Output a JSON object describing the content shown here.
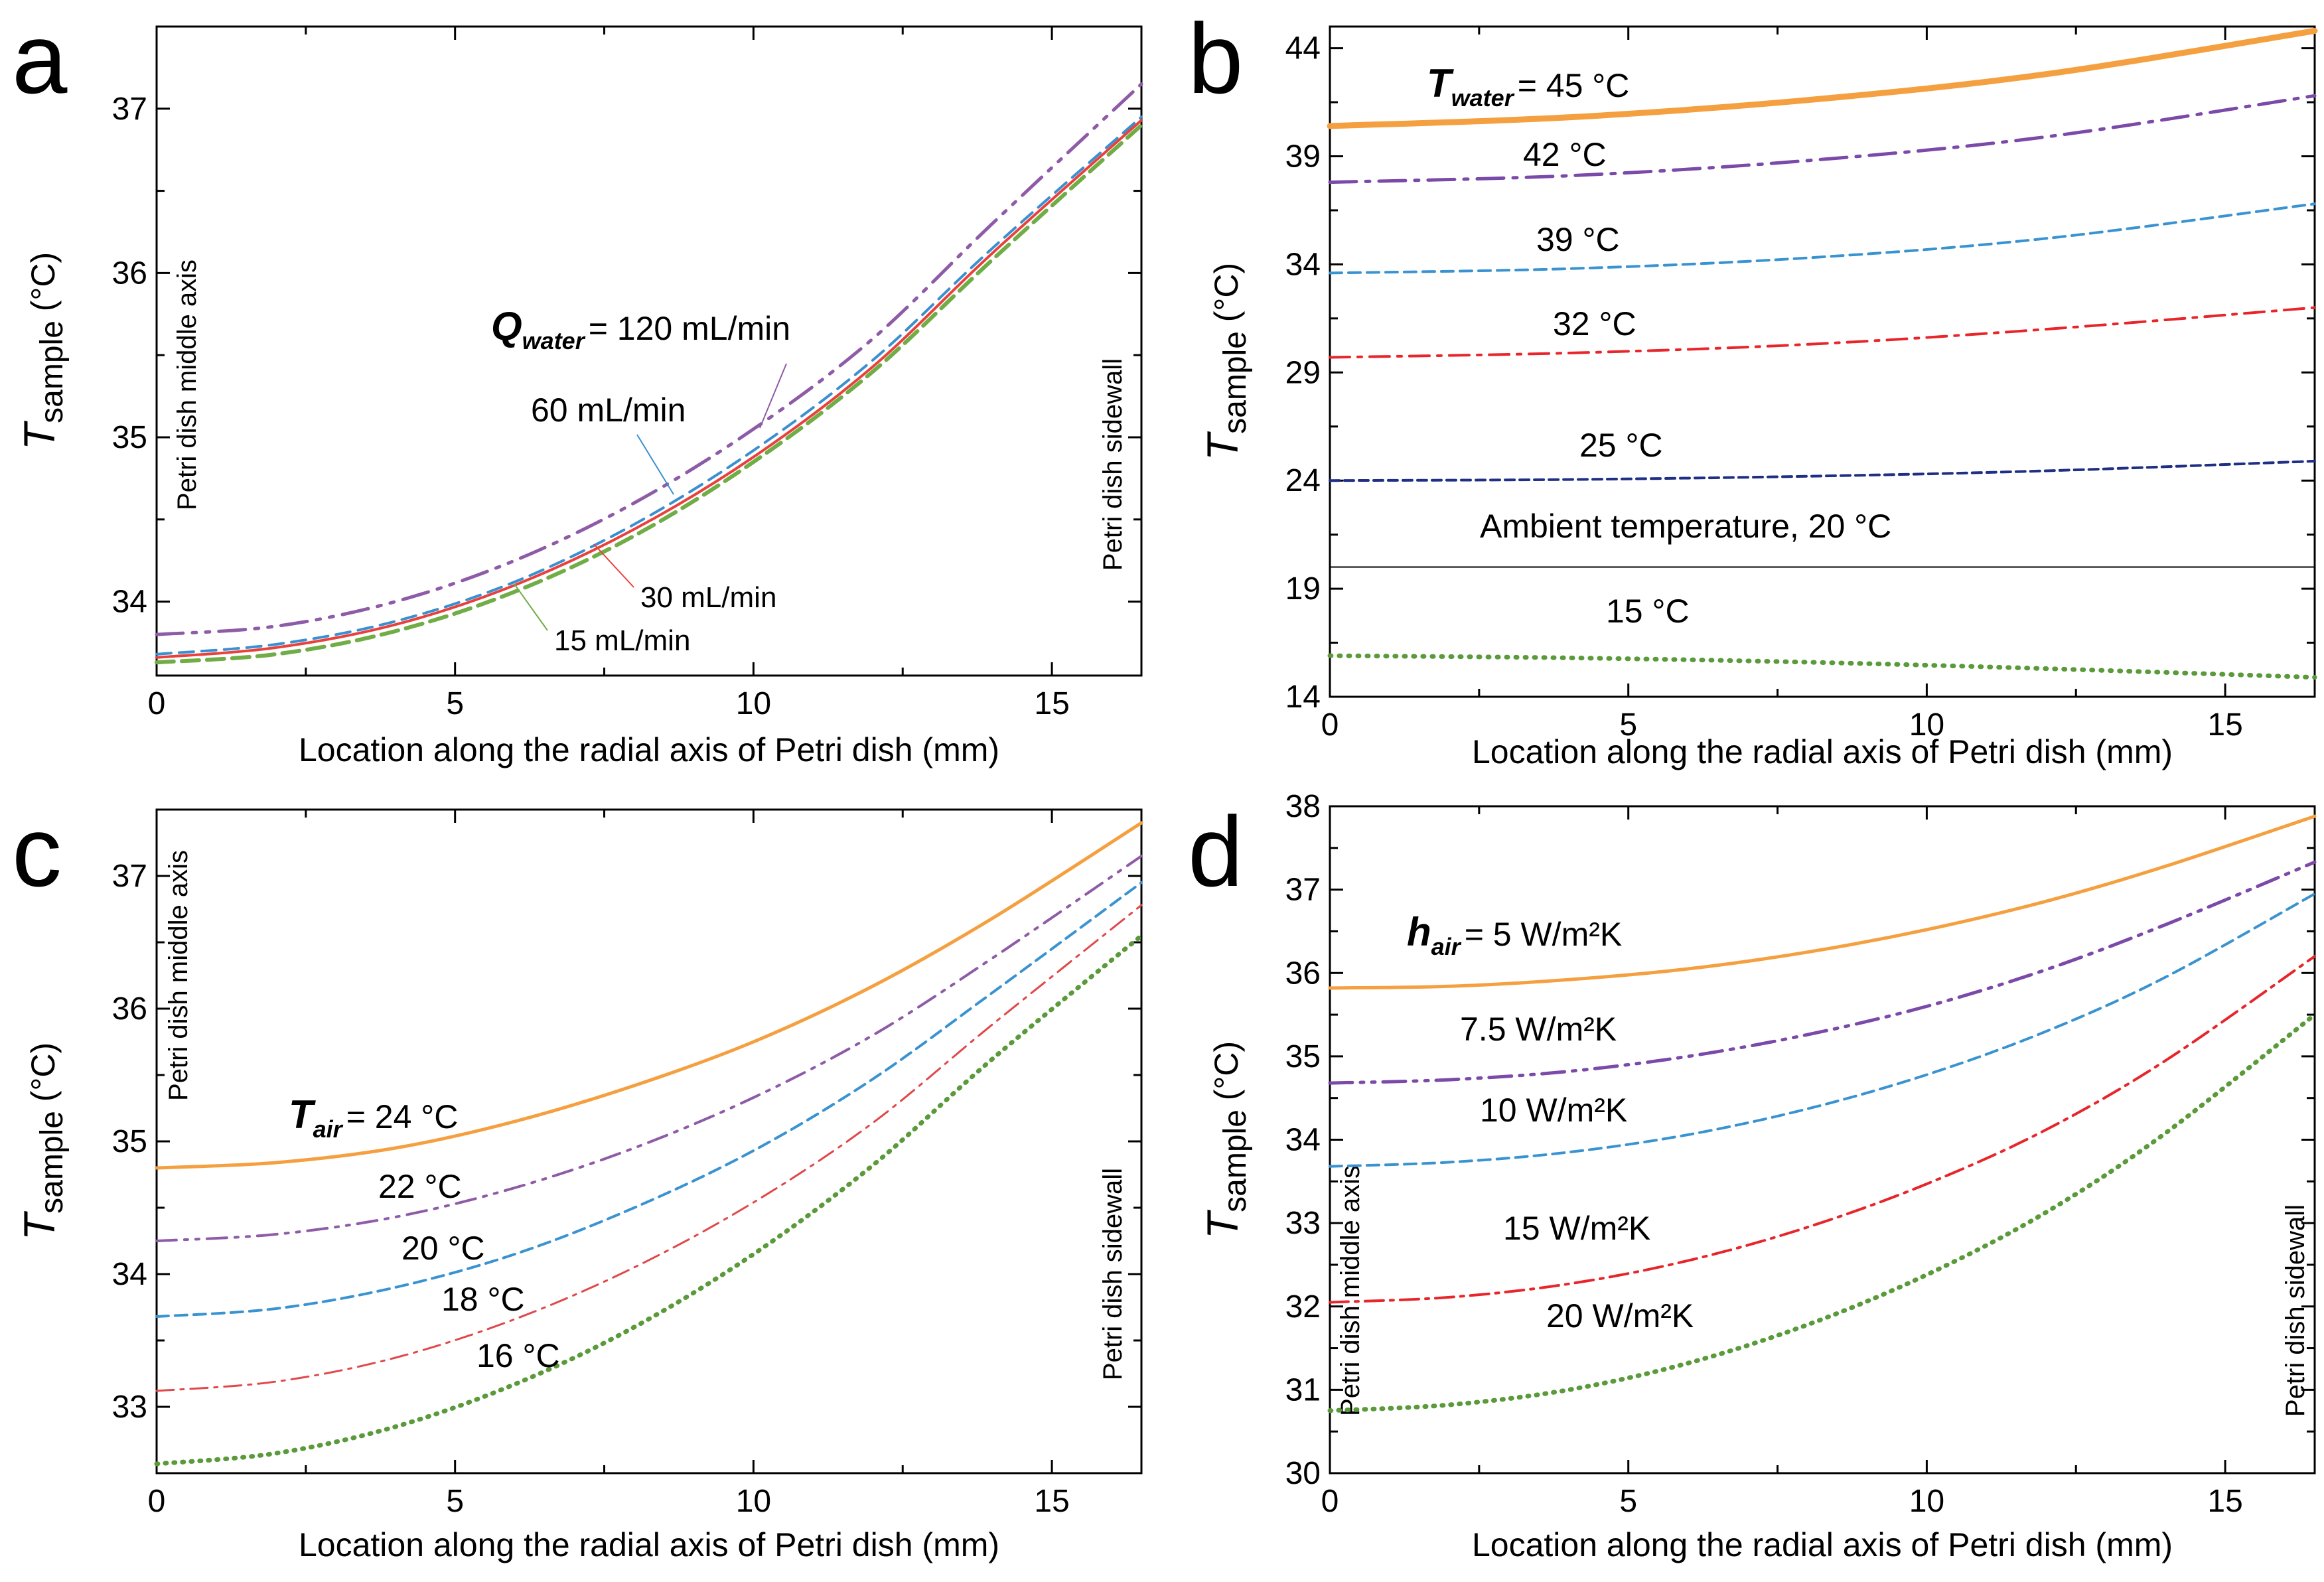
{
  "chart_data": [
    {
      "id": "a",
      "type": "line",
      "panel_letter": "a",
      "xlabel": "Location along the radial axis of Petri dish (mm)",
      "ylabel_main": "T",
      "ylabel_sub": "sample",
      "ylabel_unit": " (°C)",
      "xlim": [
        0,
        16.5
      ],
      "ylim": [
        33.55,
        37.5
      ],
      "xticks": [
        0,
        5,
        10,
        15
      ],
      "yticks": [
        34,
        35,
        36,
        37
      ],
      "side_labels": {
        "left": "Petri dish middle axis",
        "right": "Petri dish sidewall"
      },
      "series": [
        {
          "name": "120 mL/min",
          "color": "#8e5ba6",
          "width": 5,
          "dash": "40,14,6,14,6,14",
          "x": [
            0,
            2,
            4,
            6,
            8,
            10,
            12,
            14,
            16.5
          ],
          "y": [
            33.8,
            33.85,
            34.0,
            34.25,
            34.6,
            35.05,
            35.6,
            36.3,
            37.15
          ]
        },
        {
          "name": "60 mL/min",
          "color": "#3a8fd1",
          "width": 4,
          "dash": "22,12",
          "x": [
            0,
            2,
            4,
            6,
            8,
            10,
            12,
            14,
            16.5
          ],
          "y": [
            33.68,
            33.74,
            33.88,
            34.12,
            34.47,
            34.92,
            35.47,
            36.15,
            36.95
          ]
        },
        {
          "name": "30 mL/min",
          "color": "#e8413c",
          "width": 4,
          "dash": "",
          "x": [
            0,
            2,
            4,
            6,
            8,
            10,
            12,
            14,
            16.5
          ],
          "y": [
            33.66,
            33.72,
            33.86,
            34.1,
            34.44,
            34.88,
            35.43,
            36.12,
            36.93
          ]
        },
        {
          "name": "15 mL/min",
          "color": "#70ad47",
          "width": 6,
          "dash": "26,12",
          "x": [
            0,
            2,
            4,
            6,
            8,
            10,
            12,
            14,
            16.5
          ],
          "y": [
            33.63,
            33.68,
            33.82,
            34.06,
            34.4,
            34.85,
            35.4,
            36.08,
            36.9
          ]
        }
      ],
      "annotations": [
        {
          "text": "= 120 mL/min",
          "bold_prefix": "Q",
          "bold_sub": "water"
        },
        {
          "text": "60 mL/min"
        },
        {
          "text": "30 mL/min"
        },
        {
          "text": "15 mL/min"
        }
      ]
    },
    {
      "id": "b",
      "type": "line",
      "panel_letter": "b",
      "xlabel": "Location along the radial axis of Petri dish (mm)",
      "ylabel_main": "T",
      "ylabel_sub": "sample",
      "ylabel_unit": " (°C)",
      "xlim": [
        0,
        16.5
      ],
      "ylim": [
        14,
        45
      ],
      "xticks": [
        0,
        5,
        10,
        15
      ],
      "yticks": [
        14,
        19,
        24,
        29,
        34,
        39,
        44
      ],
      "series": [
        {
          "name": "45 °C",
          "color": "#f5a040",
          "width": 9,
          "dash": "",
          "x": [
            0,
            4,
            8,
            12,
            16.5
          ],
          "y": [
            40.4,
            40.8,
            41.6,
            42.8,
            44.8
          ]
        },
        {
          "name": "42 °C",
          "color": "#7b4aa8",
          "width": 5,
          "dash": "40,14,6,14",
          "x": [
            0,
            4,
            8,
            12,
            16.5
          ],
          "y": [
            37.8,
            38.1,
            38.8,
            39.9,
            41.8
          ]
        },
        {
          "name": "39 °C",
          "color": "#3a93d1",
          "width": 4,
          "dash": "18,10",
          "x": [
            0,
            4,
            8,
            12,
            16.5
          ],
          "y": [
            33.6,
            33.8,
            34.3,
            35.2,
            36.8
          ]
        },
        {
          "name": "32 °C",
          "color": "#e8252a",
          "width": 4,
          "dash": "30,12,6,12",
          "x": [
            0,
            4,
            8,
            12,
            16.5
          ],
          "y": [
            29.7,
            29.9,
            30.3,
            31.0,
            32.0
          ]
        },
        {
          "name": "25 °C",
          "color": "#1f2f86",
          "width": 4,
          "dash": "14,8",
          "x": [
            0,
            4,
            8,
            12,
            16.5
          ],
          "y": [
            24.0,
            24.05,
            24.2,
            24.45,
            24.9
          ]
        },
        {
          "name": "Ambient temperature, 20 °C",
          "color": "#000000",
          "width": 2,
          "dash": "",
          "x": [
            0,
            16.5
          ],
          "y": [
            20.0,
            20.0
          ]
        },
        {
          "name": "15 °C",
          "color": "#5a9a3a",
          "width": 7,
          "dash": "2,12",
          "x": [
            0,
            4,
            8,
            12,
            16.5
          ],
          "y": [
            15.9,
            15.8,
            15.6,
            15.3,
            14.9
          ]
        }
      ],
      "annotations": [
        {
          "text": "= 45 °C",
          "bold_prefix": "T",
          "bold_sub": "water"
        },
        {
          "text": "42 °C"
        },
        {
          "text": "39 °C"
        },
        {
          "text": "32 °C"
        },
        {
          "text": "25 °C"
        },
        {
          "text": "Ambient temperature, 20 °C"
        },
        {
          "text": "15 °C"
        }
      ]
    },
    {
      "id": "c",
      "type": "line",
      "panel_letter": "c",
      "xlabel": "Location along the radial axis of Petri dish (mm)",
      "ylabel_main": "T",
      "ylabel_sub": "sample",
      "ylabel_unit": " (°C)",
      "xlim": [
        0,
        16.5
      ],
      "ylim": [
        32.5,
        37.5
      ],
      "xticks": [
        0,
        5,
        10,
        15
      ],
      "yticks": [
        33,
        34,
        35,
        36,
        37
      ],
      "side_labels": {
        "left": "Petri dish middle axis",
        "right": "Petri dish sidewall"
      },
      "series": [
        {
          "name": "24 °C",
          "color": "#f5a040",
          "width": 5,
          "dash": "",
          "x": [
            0,
            2,
            4,
            6,
            8,
            10,
            12,
            14,
            16.5
          ],
          "y": [
            34.8,
            34.84,
            34.95,
            35.15,
            35.42,
            35.75,
            36.17,
            36.68,
            37.4
          ]
        },
        {
          "name": "22 °C",
          "color": "#8e5ba6",
          "width": 4,
          "dash": "30,12,5,12,5,12",
          "x": [
            0,
            2,
            4,
            6,
            8,
            10,
            12,
            14,
            16.5
          ],
          "y": [
            34.25,
            34.3,
            34.43,
            34.65,
            34.95,
            35.33,
            35.8,
            36.38,
            37.15
          ]
        },
        {
          "name": "20 °C",
          "color": "#3a93d1",
          "width": 4,
          "dash": "18,10",
          "x": [
            0,
            2,
            4,
            6,
            8,
            10,
            12,
            14,
            16.5
          ],
          "y": [
            33.68,
            33.74,
            33.9,
            34.15,
            34.5,
            34.93,
            35.47,
            36.12,
            36.95
          ]
        },
        {
          "name": "18 °C",
          "color": "#e0484a",
          "width": 3,
          "dash": "26,10,5,10",
          "x": [
            0,
            2,
            4,
            6,
            8,
            10,
            12,
            14,
            16.5
          ],
          "y": [
            33.12,
            33.19,
            33.37,
            33.66,
            34.05,
            34.54,
            35.14,
            35.88,
            36.78
          ]
        },
        {
          "name": "16 °C",
          "color": "#5a9a3a",
          "width": 7,
          "dash": "2,11",
          "x": [
            0,
            2,
            4,
            6,
            8,
            10,
            12,
            14,
            16.5
          ],
          "y": [
            32.57,
            32.65,
            32.85,
            33.17,
            33.6,
            34.15,
            34.82,
            35.62,
            36.55
          ]
        }
      ],
      "annotations": [
        {
          "text": "= 24 °C",
          "bold_prefix": "T",
          "bold_sub": "air"
        },
        {
          "text": "22 °C"
        },
        {
          "text": "20 °C"
        },
        {
          "text": "18 °C"
        },
        {
          "text": "16 °C"
        }
      ]
    },
    {
      "id": "d",
      "type": "line",
      "panel_letter": "d",
      "xlabel": "Location along the radial axis of Petri dish (mm)",
      "ylabel_main": "T",
      "ylabel_sub": "sample",
      "ylabel_unit": " (°C)",
      "xlim": [
        0,
        16.5
      ],
      "ylim": [
        30,
        38
      ],
      "xticks": [
        0,
        5,
        10,
        15
      ],
      "yticks": [
        30,
        31,
        32,
        33,
        34,
        35,
        36,
        37,
        38
      ],
      "side_labels": {
        "left": "Petri dish middle axis",
        "right": "Petri dish sidewall"
      },
      "series": [
        {
          "name": "5 W/m²K",
          "color": "#f5a040",
          "width": 5,
          "dash": "",
          "x": [
            0,
            2,
            4,
            6,
            8,
            10,
            12,
            14,
            16.5
          ],
          "y": [
            35.82,
            35.84,
            35.92,
            36.05,
            36.25,
            36.52,
            36.86,
            37.28,
            37.88
          ]
        },
        {
          "name": "7.5 W/m²K",
          "color": "#7b4aa8",
          "width": 5,
          "dash": "34,12,5,12,5,12",
          "x": [
            0,
            2,
            4,
            6,
            8,
            10,
            12,
            14,
            16.5
          ],
          "y": [
            34.68,
            34.72,
            34.82,
            35.0,
            35.26,
            35.6,
            36.04,
            36.58,
            37.33
          ]
        },
        {
          "name": "10 W/m²K",
          "color": "#3a93d1",
          "width": 4,
          "dash": "18,10",
          "x": [
            0,
            2,
            4,
            6,
            8,
            10,
            12,
            14,
            16.5
          ],
          "y": [
            33.68,
            33.73,
            33.85,
            34.06,
            34.37,
            34.78,
            35.3,
            35.95,
            36.95
          ]
        },
        {
          "name": "15 W/m²K",
          "color": "#e8252a",
          "width": 4,
          "dash": "28,10,5,10",
          "x": [
            0,
            2,
            4,
            6,
            8,
            10,
            12,
            14,
            16.5
          ],
          "y": [
            32.05,
            32.11,
            32.27,
            32.55,
            32.95,
            33.47,
            34.12,
            34.95,
            36.2
          ]
        },
        {
          "name": "20 W/m²K",
          "color": "#5a9a3a",
          "width": 7,
          "dash": "2,11",
          "x": [
            0,
            2,
            4,
            6,
            8,
            10,
            12,
            14,
            16.5
          ],
          "y": [
            30.75,
            30.82,
            31.0,
            31.32,
            31.78,
            32.38,
            33.13,
            34.08,
            35.5
          ]
        }
      ],
      "annotations": [
        {
          "text": "= 5 W/m²K",
          "bold_prefix": "h",
          "bold_sub": "air"
        },
        {
          "text": "7.5 W/m²K"
        },
        {
          "text": "10  W/m²K"
        },
        {
          "text": "15  W/m²K"
        },
        {
          "text": "20  W/m²K"
        }
      ]
    }
  ]
}
